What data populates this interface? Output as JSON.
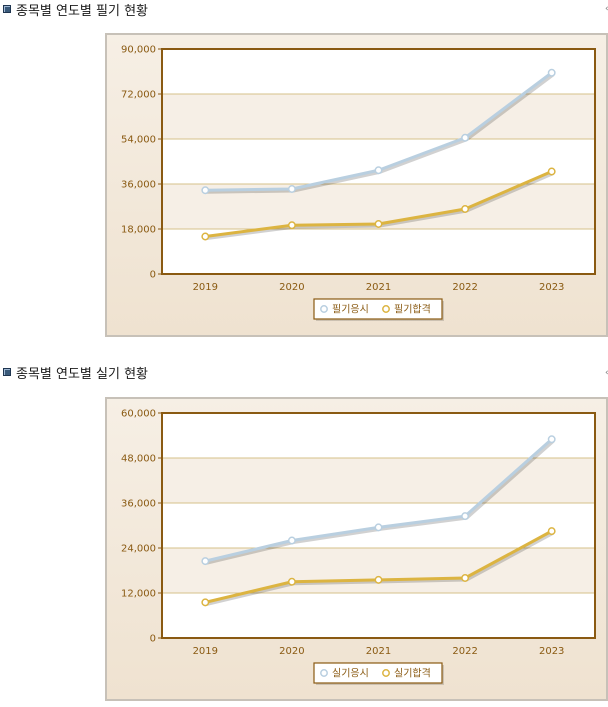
{
  "sections": [
    {
      "title": "종목별 연도별 필기 현황",
      "chart_data": {
        "type": "line",
        "categories": [
          "2019",
          "2020",
          "2021",
          "2022",
          "2023"
        ],
        "yticks": [
          "0",
          "18,000",
          "36,000",
          "54,000",
          "72,000",
          "90,000"
        ],
        "ylim": [
          0,
          90000
        ],
        "grid": true,
        "legend_position": "bottom",
        "series": [
          {
            "name": "필기응시",
            "color": "#b9cfe0",
            "values": [
              33500,
              34000,
              41500,
              54500,
              80500
            ]
          },
          {
            "name": "필기합격",
            "color": "#dcb441",
            "values": [
              15000,
              19500,
              20000,
              26000,
              41000
            ]
          }
        ]
      }
    },
    {
      "title": "종목별 연도별 실기 현황",
      "chart_data": {
        "type": "line",
        "categories": [
          "2019",
          "2020",
          "2021",
          "2022",
          "2023"
        ],
        "yticks": [
          "0",
          "12,000",
          "24,000",
          "36,000",
          "48,000",
          "60,000"
        ],
        "ylim": [
          0,
          60000
        ],
        "grid": true,
        "legend_position": "bottom",
        "series": [
          {
            "name": "실기응시",
            "color": "#b9cfe0",
            "values": [
              20500,
              26000,
              29500,
              32500,
              53000
            ]
          },
          {
            "name": "실기합격",
            "color": "#dcb441",
            "values": [
              9500,
              15000,
              15500,
              16000,
              28500
            ]
          }
        ]
      }
    }
  ],
  "theme": {
    "axis_color": "#8a5a12",
    "label_color": "#8a5a12",
    "band_color": "#f6efe6",
    "grid_color": "#d6c089"
  }
}
